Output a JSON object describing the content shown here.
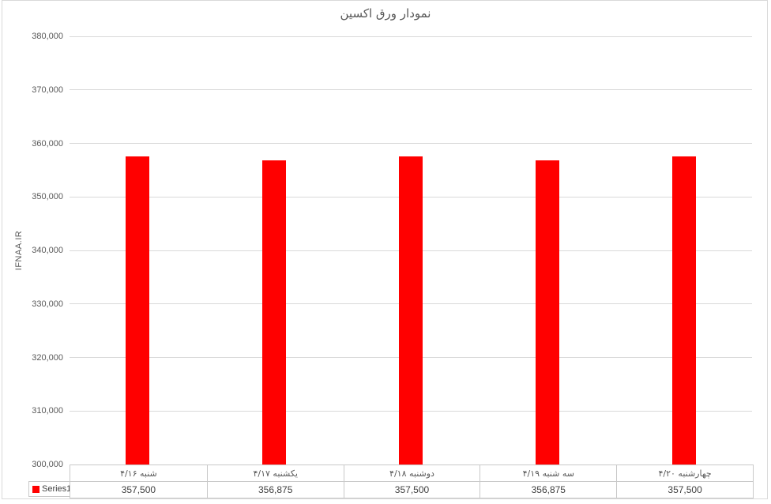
{
  "chart_data": {
    "type": "bar",
    "title": "نمودار ورق اکسین",
    "ylabel": "IFNAA.IR",
    "xlabel": "",
    "categories": [
      "شنبه ۴/۱۶",
      "یکشنبه ۴/۱۷",
      "دوشنبه ۴/۱۸",
      "سه شنبه ۴/۱۹",
      "چهارشنبه ۴/۲۰"
    ],
    "series": [
      {
        "name": "Series1",
        "values": [
          357500,
          356875,
          357500,
          356875,
          357500
        ],
        "color": "#FF0000"
      }
    ],
    "value_labels": [
      "357,500",
      "356,875",
      "357,500",
      "356,875",
      "357,500"
    ],
    "ylim": [
      300000,
      380000
    ],
    "ytick_step": 10000,
    "ytick_labels": [
      "300,000",
      "310,000",
      "320,000",
      "330,000",
      "340,000",
      "350,000",
      "360,000",
      "370,000",
      "380,000"
    ],
    "grid": true,
    "legend_position": "bottom-left-data-table",
    "colors": {
      "bar": "#FF0000",
      "gridline": "#D9D9D9",
      "axis_line": "#BFBFBF",
      "table_border": "#C9C9C9",
      "tick_text": "#595959",
      "value_text": "#404040",
      "title_text": "#595959",
      "background": "#FFFFFF"
    }
  }
}
